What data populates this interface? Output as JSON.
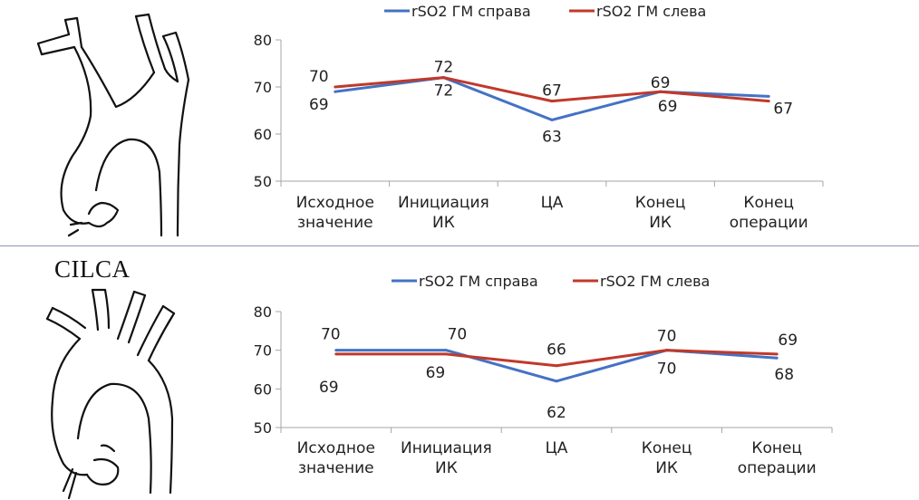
{
  "panel_label_bottom": "CILCA",
  "colors": {
    "right": "#4472c4",
    "left": "#c0392b",
    "axis": "#a6a6a6"
  },
  "chart_data": [
    {
      "type": "line",
      "categories": [
        "Исходное значение",
        "Инициация ИК",
        "ЦА",
        "Конец ИК",
        "Конец операции"
      ],
      "ylim": [
        50,
        80
      ],
      "yticks": [
        50,
        60,
        70,
        80
      ],
      "legend_position": "top",
      "series": [
        {
          "name": "rSO2 ГМ справа",
          "values": [
            69,
            72,
            63,
            69,
            68
          ],
          "color": "#4472c4"
        },
        {
          "name": "rSO2 ГМ слева",
          "values": [
            70,
            72,
            67,
            69,
            67
          ],
          "color": "#c0392b"
        }
      ],
      "data_labels": [
        {
          "text": "70",
          "series": 1,
          "point": 0
        },
        {
          "text": "69",
          "series": 0,
          "point": 0
        },
        {
          "text": "72",
          "series": 1,
          "point": 1
        },
        {
          "text": "72",
          "series": 0,
          "point": 1
        },
        {
          "text": "67",
          "series": 1,
          "point": 2
        },
        {
          "text": "63",
          "series": 0,
          "point": 2
        },
        {
          "text": "69",
          "series": 0,
          "point": 3
        },
        {
          "text": "69",
          "series": 1,
          "point": 3
        },
        {
          "text": "67",
          "series": 1,
          "point": 4
        }
      ]
    },
    {
      "type": "line",
      "categories": [
        "Исходное значение",
        "Инициация ИК",
        "ЦА",
        "Конец ИК",
        "Конец операции"
      ],
      "ylim": [
        50,
        80
      ],
      "yticks": [
        50,
        60,
        70,
        80
      ],
      "legend_position": "top",
      "series": [
        {
          "name": "rSO2 ГМ справа",
          "values": [
            70,
            70,
            62,
            70,
            68
          ],
          "color": "#4472c4"
        },
        {
          "name": "rSO2 ГМ слева",
          "values": [
            69,
            69,
            66,
            70,
            69
          ],
          "color": "#c0392b"
        }
      ],
      "data_labels": [
        {
          "text": "70",
          "series": 0,
          "point": 0
        },
        {
          "text": "69",
          "series": 1,
          "point": 0
        },
        {
          "text": "70",
          "series": 0,
          "point": 1
        },
        {
          "text": "69",
          "series": 1,
          "point": 1
        },
        {
          "text": "66",
          "series": 1,
          "point": 2
        },
        {
          "text": "62",
          "series": 0,
          "point": 2
        },
        {
          "text": "70",
          "series": 1,
          "point": 3
        },
        {
          "text": "70",
          "series": 0,
          "point": 3
        },
        {
          "text": "69",
          "series": 1,
          "point": 4
        },
        {
          "text": "68",
          "series": 0,
          "point": 4
        }
      ]
    }
  ]
}
